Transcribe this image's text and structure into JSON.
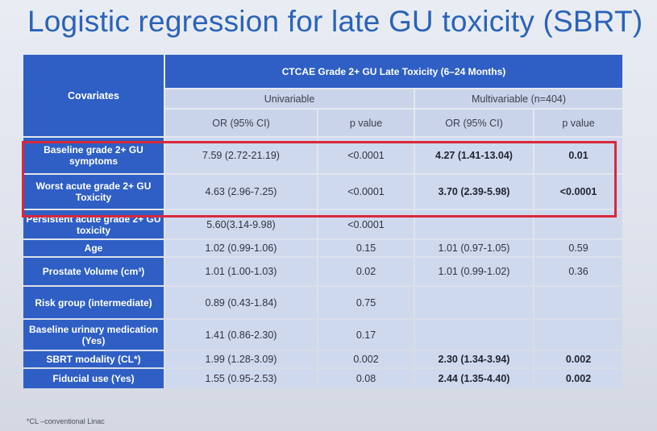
{
  "title": "Logistic regression for late GU toxicity (SBRT)",
  "accent_color": "#2f5fc4",
  "highlight_color": "#d9283a",
  "table": {
    "covariates_header": "Covariates",
    "main_header": "CTCAE Grade 2+ GU Late Toxicity (6–24 Months)",
    "univariable_header": "Univariable",
    "multivariable_header": "Multivariable (n=404)",
    "col_or": "OR (95% CI)",
    "col_p": "p value",
    "rows": [
      {
        "covariate": "Baseline grade 2+ GU symptoms",
        "uni_or": "7.59  (2.72-21.19)",
        "uni_p": "<0.0001",
        "multi_or": "4.27 (1.41-13.04)",
        "multi_p": "0.01"
      },
      {
        "covariate": "Worst acute grade 2+ GU Toxicity",
        "uni_or": "4.63 (2.96-7.25)",
        "uni_p": "<0.0001",
        "multi_or": "3.70 (2.39-5.98)",
        "multi_p": "<0.0001"
      },
      {
        "covariate": "Persistent acute grade 2+ GU toxicity",
        "uni_or": "5.60(3.14-9.98)",
        "uni_p": "<0.0001",
        "multi_or": "",
        "multi_p": ""
      },
      {
        "covariate": "Age",
        "uni_or": "1.02 (0.99-1.06)",
        "uni_p": "0.15",
        "multi_or": "1.01 (0.97-1.05)",
        "multi_p": "0.59"
      },
      {
        "covariate": "Prostate Volume (cm³)",
        "uni_or": "1.01 (1.00-1.03)",
        "uni_p": "0.02",
        "multi_or": "1.01 (0.99-1.02)",
        "multi_p": "0.36"
      },
      {
        "covariate": "Risk group (intermediate)",
        "uni_or": "0.89 (0.43-1.84)",
        "uni_p": "0.75",
        "multi_or": "",
        "multi_p": ""
      },
      {
        "covariate": "Baseline urinary medication (Yes)",
        "uni_or": "1.41 (0.86-2.30)",
        "uni_p": "0.17",
        "multi_or": "",
        "multi_p": ""
      },
      {
        "covariate": "SBRT modality (CL*)",
        "uni_or": "1.99 (1.28-3.09)",
        "uni_p": "0.002",
        "multi_or": "2.30 (1.34-3.94)",
        "multi_p": "0.002"
      },
      {
        "covariate": "Fiducial use (Yes)",
        "uni_or": "1.55 (0.95-2.53)",
        "uni_p": "0.08",
        "multi_or": "2.44 (1.35-4.40)",
        "multi_p": "0.002"
      }
    ]
  },
  "footnote": "*CL –conventional Linac"
}
